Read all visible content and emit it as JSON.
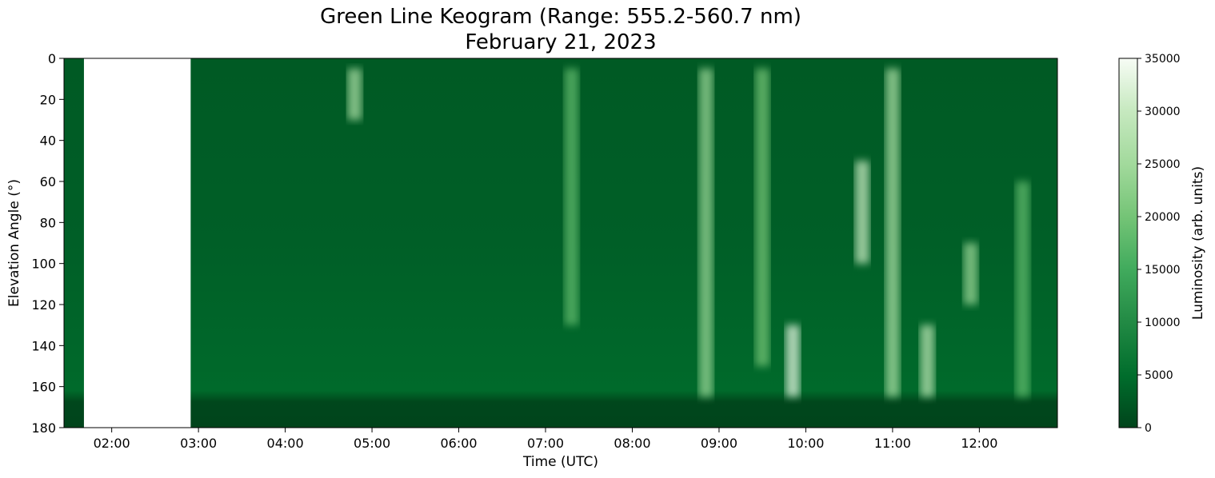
{
  "chart_data": {
    "type": "heatmap",
    "title_line1": "Green Line Keogram (Range: 555.2-560.7 nm)",
    "title_line2": "February 21, 2023",
    "xlabel": "Time (UTC)",
    "ylabel": "Elevation Angle (°)",
    "colorbar_label": "Luminosity (arb. units)",
    "colormap": "Greens_r",
    "colors": {
      "low": "#00441b",
      "mid": "#238b45",
      "high": "#f7fcf5",
      "gap": "#ffffff"
    },
    "x_range_hours": [
      1.45,
      12.9
    ],
    "data_gap_hours": [
      1.68,
      2.91
    ],
    "x_ticks": [
      {
        "value": 2,
        "label": "02:00"
      },
      {
        "value": 3,
        "label": "03:00"
      },
      {
        "value": 4,
        "label": "04:00"
      },
      {
        "value": 5,
        "label": "05:00"
      },
      {
        "value": 6,
        "label": "06:00"
      },
      {
        "value": 7,
        "label": "07:00"
      },
      {
        "value": 8,
        "label": "08:00"
      },
      {
        "value": 9,
        "label": "09:00"
      },
      {
        "value": 10,
        "label": "10:00"
      },
      {
        "value": 11,
        "label": "11:00"
      },
      {
        "value": 12,
        "label": "12:00"
      }
    ],
    "y_range": [
      0,
      180
    ],
    "y_ticks": [
      {
        "value": 0,
        "label": "0"
      },
      {
        "value": 20,
        "label": "20"
      },
      {
        "value": 40,
        "label": "40"
      },
      {
        "value": 60,
        "label": "60"
      },
      {
        "value": 80,
        "label": "80"
      },
      {
        "value": 100,
        "label": "100"
      },
      {
        "value": 120,
        "label": "120"
      },
      {
        "value": 140,
        "label": "140"
      },
      {
        "value": 160,
        "label": "160"
      },
      {
        "value": 180,
        "label": "180"
      }
    ],
    "colorbar_range": [
      0,
      35000
    ],
    "colorbar_ticks": [
      {
        "value": 0,
        "label": "0"
      },
      {
        "value": 5000,
        "label": "5000"
      },
      {
        "value": 10000,
        "label": "10000"
      },
      {
        "value": 15000,
        "label": "15000"
      },
      {
        "value": 20000,
        "label": "20000"
      },
      {
        "value": 25000,
        "label": "25000"
      },
      {
        "value": 30000,
        "label": "30000"
      },
      {
        "value": 35000,
        "label": "35000"
      }
    ],
    "auroral_features": [
      {
        "time": 4.8,
        "elev_start": 5,
        "elev_end": 30,
        "intensity": 26000
      },
      {
        "time": 7.3,
        "elev_start": 5,
        "elev_end": 130,
        "intensity": 18000
      },
      {
        "time": 8.85,
        "elev_start": 5,
        "elev_end": 165,
        "intensity": 24000
      },
      {
        "time": 9.5,
        "elev_start": 5,
        "elev_end": 150,
        "intensity": 20000
      },
      {
        "time": 9.85,
        "elev_start": 130,
        "elev_end": 165,
        "intensity": 33000
      },
      {
        "time": 10.65,
        "elev_start": 50,
        "elev_end": 100,
        "intensity": 30000
      },
      {
        "time": 11.0,
        "elev_start": 5,
        "elev_end": 165,
        "intensity": 26000
      },
      {
        "time": 11.4,
        "elev_start": 130,
        "elev_end": 165,
        "intensity": 28000
      },
      {
        "time": 11.9,
        "elev_start": 90,
        "elev_end": 120,
        "intensity": 24000
      },
      {
        "time": 12.5,
        "elev_start": 60,
        "elev_end": 165,
        "intensity": 18000
      }
    ]
  }
}
